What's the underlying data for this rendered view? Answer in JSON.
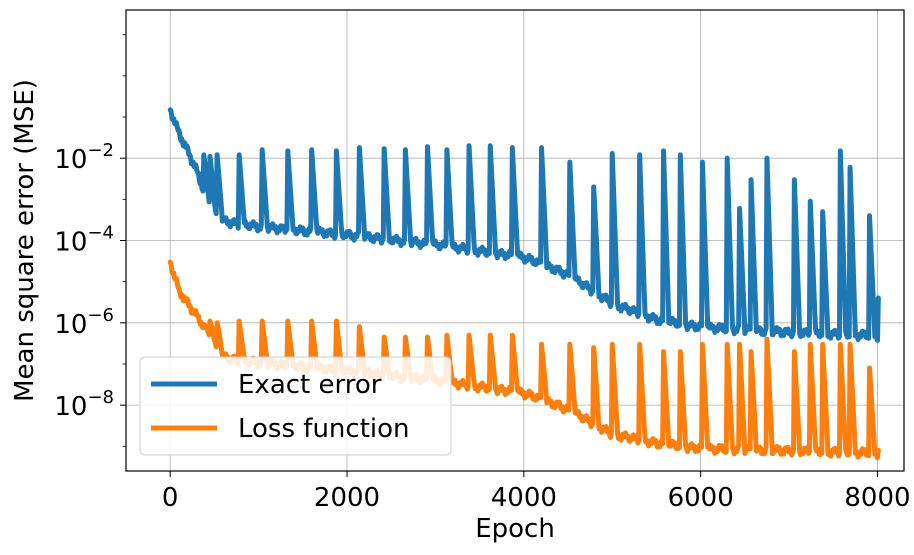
{
  "chart_data": {
    "type": "line",
    "xlabel": "Epoch",
    "ylabel": "Mean square error (MSE)",
    "yscale": "log",
    "xlim": [
      -500,
      8300
    ],
    "ylim_exponent": [
      -9.6,
      1.6
    ],
    "x_ticks": [
      0,
      2000,
      4000,
      6000,
      8000
    ],
    "x_tick_labels": [
      "0",
      "2000",
      "4000",
      "6000",
      "8000"
    ],
    "y_ticks_exponent": [
      -8,
      -6,
      -4,
      -2
    ],
    "y_tick_labels": [
      {
        "base": "10",
        "exp": "−8"
      },
      {
        "base": "10",
        "exp": "−6"
      },
      {
        "base": "10",
        "exp": "−4"
      },
      {
        "base": "10",
        "exp": "−2"
      }
    ],
    "grid": true,
    "legend_position": "lower-left",
    "series": [
      {
        "name": "Exact error",
        "color": "#1f77b4",
        "baseline": [
          [
            0,
            0.15
          ],
          [
            100,
            0.04
          ],
          [
            200,
            0.015
          ],
          [
            300,
            0.005
          ],
          [
            400,
            0.0012
          ],
          [
            500,
            0.0005
          ],
          [
            600,
            0.0003
          ],
          [
            800,
            0.00025
          ],
          [
            1200,
            0.0002
          ],
          [
            2000,
            0.00014
          ],
          [
            3000,
            8e-05
          ],
          [
            4000,
            4e-05
          ],
          [
            4500,
            1.5e-05
          ],
          [
            5000,
            3e-06
          ],
          [
            5500,
            1.2e-06
          ],
          [
            6000,
            8e-07
          ],
          [
            7000,
            6e-07
          ],
          [
            8000,
            5e-07
          ]
        ],
        "spikes": [
          [
            380,
            0.012
          ],
          [
            450,
            0.011
          ],
          [
            530,
            0.012
          ],
          [
            780,
            0.012
          ],
          [
            1040,
            0.016
          ],
          [
            1330,
            0.015
          ],
          [
            1600,
            0.016
          ],
          [
            1880,
            0.015
          ],
          [
            2140,
            0.018
          ],
          [
            2420,
            0.017
          ],
          [
            2660,
            0.016
          ],
          [
            2910,
            0.019
          ],
          [
            3130,
            0.016
          ],
          [
            3380,
            0.02
          ],
          [
            3620,
            0.02
          ],
          [
            3870,
            0.018
          ],
          [
            4200,
            0.018
          ],
          [
            4520,
            0.008
          ],
          [
            4790,
            0.002
          ],
          [
            5000,
            0.013
          ],
          [
            5310,
            0.012
          ],
          [
            5580,
            0.015
          ],
          [
            5770,
            0.012
          ],
          [
            6020,
            0.008
          ],
          [
            6300,
            0.01
          ],
          [
            6440,
            0.0006
          ],
          [
            6570,
            0.003
          ],
          [
            6750,
            0.01
          ],
          [
            7060,
            0.003
          ],
          [
            7240,
            0.0009
          ],
          [
            7380,
            0.0005
          ],
          [
            7580,
            0.015
          ],
          [
            7690,
            0.006
          ],
          [
            7910,
            0.0004
          ]
        ],
        "end_value": 4e-06
      },
      {
        "name": "Loss function",
        "color": "#ff7f0e",
        "baseline": [
          [
            0,
            3e-05
          ],
          [
            100,
            6e-06
          ],
          [
            200,
            3e-06
          ],
          [
            300,
            1.5e-06
          ],
          [
            400,
            7e-07
          ],
          [
            500,
            3e-07
          ],
          [
            600,
            1.5e-07
          ],
          [
            800,
            1.2e-07
          ],
          [
            1200,
            1e-07
          ],
          [
            2000,
            7e-08
          ],
          [
            3000,
            4e-08
          ],
          [
            4000,
            2e-08
          ],
          [
            4500,
            8e-09
          ],
          [
            5000,
            2e-09
          ],
          [
            5500,
            1.2e-09
          ],
          [
            6000,
            9e-10
          ],
          [
            7000,
            8e-10
          ],
          [
            8000,
            7e-10
          ]
        ],
        "spikes": [
          [
            380,
            9e-07
          ],
          [
            450,
            1.1e-06
          ],
          [
            530,
            1e-06
          ],
          [
            780,
            1.1e-06
          ],
          [
            1040,
            1.1e-06
          ],
          [
            1330,
            1.1e-06
          ],
          [
            1600,
            1.1e-06
          ],
          [
            1880,
            1.1e-06
          ],
          [
            2140,
            8e-07
          ],
          [
            2420,
            4.5e-07
          ],
          [
            2660,
            4.5e-07
          ],
          [
            2910,
            4.5e-07
          ],
          [
            3130,
            5e-07
          ],
          [
            3380,
            5e-07
          ],
          [
            3620,
            5e-07
          ],
          [
            3870,
            5e-07
          ],
          [
            4200,
            3e-07
          ],
          [
            4520,
            3e-07
          ],
          [
            4790,
            2.5e-07
          ],
          [
            5000,
            3e-07
          ],
          [
            5310,
            3e-07
          ],
          [
            5580,
            2e-07
          ],
          [
            5770,
            2e-07
          ],
          [
            6020,
            3e-07
          ],
          [
            6300,
            3e-07
          ],
          [
            6440,
            3e-07
          ],
          [
            6570,
            2e-07
          ],
          [
            6750,
            4e-07
          ],
          [
            7060,
            2e-07
          ],
          [
            7240,
            3e-07
          ],
          [
            7380,
            3e-07
          ],
          [
            7580,
            3e-07
          ],
          [
            7690,
            3e-07
          ],
          [
            7910,
            8e-08
          ]
        ],
        "end_value": 8e-10
      }
    ]
  }
}
